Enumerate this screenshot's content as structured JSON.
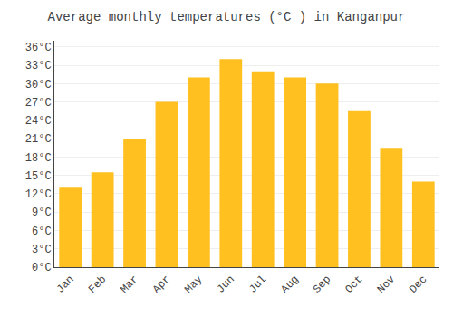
{
  "chart_data": {
    "type": "bar",
    "title": "Average monthly temperatures (°C ) in Kanganpur",
    "categories": [
      "Jan",
      "Feb",
      "Mar",
      "Apr",
      "May",
      "Jun",
      "Jul",
      "Aug",
      "Sep",
      "Oct",
      "Nov",
      "Dec"
    ],
    "values": [
      13,
      15.5,
      21,
      27,
      31,
      34,
      32,
      31,
      30,
      25.5,
      19.5,
      14
    ],
    "color": "#FFC020",
    "ylim": [
      0,
      37
    ],
    "yticks": [
      {
        "value": 0,
        "label": "0°C"
      },
      {
        "value": 3,
        "label": "3°C"
      },
      {
        "value": 6,
        "label": "6°C"
      },
      {
        "value": 9,
        "label": "9°C"
      },
      {
        "value": 12,
        "label": "12°C"
      },
      {
        "value": 15,
        "label": "15°C"
      },
      {
        "value": 18,
        "label": "18°C"
      },
      {
        "value": 21,
        "label": "21°C"
      },
      {
        "value": 24,
        "label": "24°C"
      },
      {
        "value": 27,
        "label": "27°C"
      },
      {
        "value": 30,
        "label": "30°C"
      },
      {
        "value": 33,
        "label": "33°C"
      },
      {
        "value": 36,
        "label": "36°C"
      }
    ],
    "grid": true
  }
}
